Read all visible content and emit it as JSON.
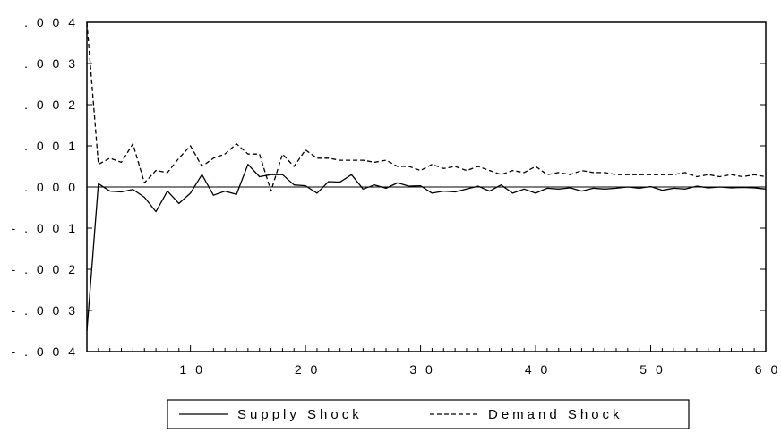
{
  "chart_data": {
    "type": "line",
    "title": "",
    "xlabel": "",
    "ylabel": "",
    "xlim": [
      1,
      60
    ],
    "ylim": [
      -0.004,
      0.004
    ],
    "x_ticks": [
      {
        "value": 10,
        "label": "1 0"
      },
      {
        "value": 20,
        "label": "2 0"
      },
      {
        "value": 30,
        "label": "3 0"
      },
      {
        "value": 40,
        "label": "4 0"
      },
      {
        "value": 50,
        "label": "5 0"
      },
      {
        "value": 60,
        "label": "6 0"
      }
    ],
    "y_ticks": [
      {
        "value": 0.004,
        "label": ". 0 0 4"
      },
      {
        "value": 0.003,
        "label": ". 0 0 3"
      },
      {
        "value": 0.002,
        "label": ". 0 0 2"
      },
      {
        "value": 0.001,
        "label": ". 0 0 1"
      },
      {
        "value": 0.0,
        "label": ". 0 0 0"
      },
      {
        "value": -0.001,
        "label": "- . 0 0 1"
      },
      {
        "value": -0.002,
        "label": "- . 0 0 2"
      },
      {
        "value": -0.003,
        "label": "- . 0 0 3"
      },
      {
        "value": -0.004,
        "label": "- . 0 0 4"
      }
    ],
    "zero_line": true,
    "grid": false,
    "legend_position": "bottom-center",
    "x": [
      1,
      2,
      3,
      4,
      5,
      6,
      7,
      8,
      9,
      10,
      11,
      12,
      13,
      14,
      15,
      16,
      17,
      18,
      19,
      20,
      21,
      22,
      23,
      24,
      25,
      26,
      27,
      28,
      29,
      30,
      31,
      32,
      33,
      34,
      35,
      36,
      37,
      38,
      39,
      40,
      41,
      42,
      43,
      44,
      45,
      46,
      47,
      48,
      49,
      50,
      51,
      52,
      53,
      54,
      55,
      56,
      57,
      58,
      59,
      60
    ],
    "series": [
      {
        "name": "Supply Shock",
        "style": "solid",
        "color": "#000000",
        "values": [
          -0.0035,
          8e-05,
          -0.0001,
          -0.00012,
          -6e-05,
          -0.00025,
          -0.0006,
          -0.0001,
          -0.0004,
          -0.00015,
          0.0003,
          -0.0002,
          -0.0001,
          -0.00018,
          0.00055,
          0.00025,
          0.0003,
          0.0003,
          5e-05,
          3e-05,
          -0.00015,
          0.00013,
          0.00012,
          0.0003,
          -5e-05,
          5e-05,
          -3e-05,
          0.0001,
          2e-05,
          3e-05,
          -0.00015,
          -0.0001,
          -0.00012,
          -5e-05,
          2e-05,
          -0.0001,
          5e-05,
          -0.00015,
          -5e-05,
          -0.00015,
          -3e-05,
          -5e-05,
          -2e-05,
          -0.0001,
          -3e-05,
          -5e-05,
          -3e-05,
          0.0,
          -3e-05,
          1e-05,
          -8e-05,
          -3e-05,
          -5e-05,
          2e-05,
          -2e-05,
          0.0,
          -2e-05,
          -1e-05,
          -2e-05,
          -5e-05
        ]
      },
      {
        "name": "Demand Shock",
        "style": "dashed",
        "color": "#000000",
        "values": [
          0.004,
          0.00055,
          0.0007,
          0.0006,
          0.00105,
          0.0001,
          0.0004,
          0.00035,
          0.0007,
          0.001,
          0.0005,
          0.0007,
          0.0008,
          0.00105,
          0.0008,
          0.0008,
          -0.0001,
          0.0008,
          0.0005,
          0.0009,
          0.0007,
          0.0007,
          0.00065,
          0.00065,
          0.00065,
          0.0006,
          0.00065,
          0.0005,
          0.0005,
          0.0004,
          0.00055,
          0.00045,
          0.0005,
          0.0004,
          0.0005,
          0.0004,
          0.0003,
          0.0004,
          0.00035,
          0.0005,
          0.0003,
          0.00035,
          0.0003,
          0.0004,
          0.00035,
          0.00035,
          0.0003,
          0.0003,
          0.0003,
          0.0003,
          0.0003,
          0.0003,
          0.00035,
          0.00025,
          0.0003,
          0.00025,
          0.0003,
          0.00025,
          0.0003,
          0.00025
        ]
      }
    ]
  }
}
